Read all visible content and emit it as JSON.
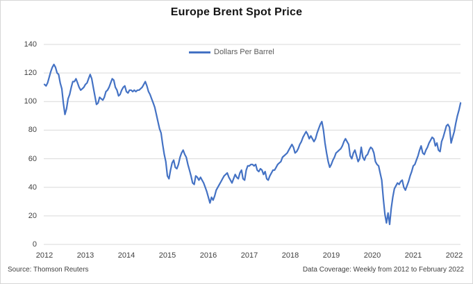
{
  "chart_data": {
    "type": "line",
    "title": "Europe Brent Spot Price",
    "legend": [
      "Dollars Per Barrel"
    ],
    "legend_position": "top-center-inside",
    "grid": true,
    "xlabel": "",
    "ylabel": "",
    "ylim": [
      0,
      140
    ],
    "y_ticks": [
      0,
      20,
      40,
      60,
      80,
      100,
      120,
      140
    ],
    "x_tick_labels": [
      "2012",
      "2013",
      "2014",
      "2015",
      "2016",
      "2017",
      "2018",
      "2019",
      "2020",
      "2021",
      "2022"
    ],
    "x_start_year": 2012,
    "points_per_year": 26,
    "cadence": "biweekly approximation of weekly data",
    "series": [
      {
        "name": "Dollars Per Barrel",
        "color": "#4472C4",
        "values": [
          112,
          111,
          113,
          117,
          121,
          124,
          126,
          124,
          120,
          119,
          113,
          109,
          99,
          91,
          95,
          102,
          105,
          110,
          114,
          114,
          116,
          113,
          110,
          108,
          109,
          110,
          112,
          113,
          116,
          119,
          116,
          110,
          104,
          98,
          99,
          103,
          102,
          101,
          103,
          107,
          108,
          110,
          113,
          116,
          115,
          110,
          108,
          104,
          105,
          108,
          110,
          111,
          107,
          106,
          108,
          108,
          107,
          108,
          107,
          108,
          108,
          109,
          110,
          112,
          114,
          111,
          107,
          105,
          102,
          99,
          96,
          91,
          86,
          81,
          78,
          70,
          63,
          58,
          48,
          46,
          52,
          57,
          59,
          54,
          53,
          56,
          61,
          64,
          66,
          63,
          61,
          56,
          52,
          48,
          43,
          42,
          48,
          47,
          45,
          47,
          45,
          43,
          40,
          37,
          33,
          29,
          33,
          31,
          34,
          38,
          40,
          42,
          44,
          46,
          48,
          49,
          50,
          47,
          45,
          43,
          46,
          49,
          47,
          46,
          50,
          52,
          46,
          45,
          52,
          55,
          55,
          56,
          56,
          55,
          56,
          52,
          51,
          53,
          52,
          49,
          51,
          46,
          45,
          48,
          50,
          52,
          52,
          54,
          56,
          57,
          58,
          61,
          62,
          63,
          64,
          66,
          68,
          70,
          68,
          64,
          65,
          67,
          70,
          72,
          75,
          77,
          79,
          77,
          74,
          76,
          74,
          72,
          74,
          78,
          81,
          84,
          86,
          80,
          71,
          64,
          58,
          54,
          56,
          59,
          61,
          64,
          65,
          66,
          67,
          69,
          72,
          74,
          72,
          70,
          62,
          60,
          64,
          66,
          62,
          58,
          60,
          68,
          61,
          59,
          62,
          63,
          66,
          68,
          67,
          64,
          58,
          56,
          55,
          50,
          45,
          32,
          21,
          15,
          22,
          14,
          25,
          33,
          39,
          41,
          43,
          42,
          44,
          45,
          40,
          38,
          41,
          44,
          48,
          51,
          55,
          56,
          59,
          62,
          66,
          69,
          64,
          63,
          66,
          68,
          71,
          73,
          75,
          74,
          69,
          71,
          66,
          65,
          72,
          75,
          79,
          83,
          84,
          82,
          71,
          75,
          79,
          85,
          90,
          94,
          99
        ]
      }
    ]
  },
  "colors": {
    "line": "#4472C4",
    "grid": "#D9D9D9",
    "tick_text": "#3F3F3F",
    "footer_text": "#404040",
    "background": "#FFFFFF"
  },
  "footer": {
    "source": "Source: Thomson Reuters",
    "coverage": "Data Coverage: Weekly from 2012 to February 2022"
  }
}
